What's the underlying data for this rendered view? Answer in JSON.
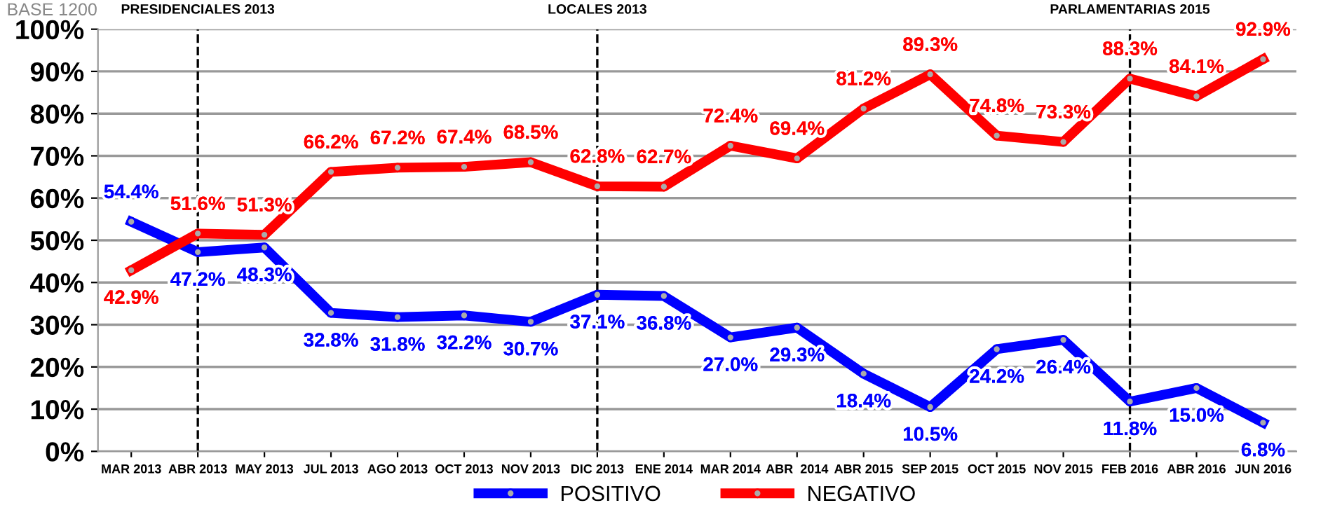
{
  "chart_data": {
    "type": "line",
    "categories": [
      "MAR 2013",
      "ABR 2013",
      "MAY 2013",
      "JUL 2013",
      "AGO 2013",
      "OCT 2013",
      "NOV 2013",
      "DIC 2013",
      "ENE 2014",
      "MAR 2014",
      "ABR  2014",
      "ABR 2015",
      "SEP 2015",
      "OCT 2015",
      "NOV 2015",
      "FEB 2016",
      "ABR 2016",
      "JUN 2016"
    ],
    "series": [
      {
        "name": "POSITIVO",
        "color": "#0000ff",
        "values": [
          54.4,
          47.2,
          48.3,
          32.8,
          31.8,
          32.2,
          30.7,
          37.1,
          36.8,
          27.0,
          29.3,
          18.4,
          10.5,
          24.2,
          26.4,
          11.8,
          15.0,
          6.8
        ],
        "value_labels": [
          "54.4%",
          "47.2%",
          "48.3%",
          "32.8%",
          "31.8%",
          "32.2%",
          "30.7%",
          "37.1%",
          "36.8%",
          "27.0%",
          "29.3%",
          "18.4%",
          "10.5%",
          "24.2%",
          "26.4%",
          "11.8%",
          "15.0%",
          "6.8%"
        ]
      },
      {
        "name": "NEGATIVO",
        "color": "#ff0000",
        "values": [
          42.9,
          51.6,
          51.3,
          66.2,
          67.2,
          67.4,
          68.5,
          62.8,
          62.7,
          72.4,
          69.4,
          81.2,
          89.3,
          74.8,
          73.3,
          88.3,
          84.1,
          92.9
        ],
        "value_labels": [
          "42.9%",
          "51.6%",
          "51.3%",
          "66.2%",
          "67.2%",
          "67.4%",
          "68.5%",
          "62.8%",
          "62.7%",
          "72.4%",
          "69.4%",
          "81.2%",
          "89.3%",
          "74.8%",
          "73.3%",
          "88.3%",
          "84.1%",
          "92.9%"
        ]
      }
    ],
    "ylim": [
      0,
      100
    ],
    "yticks": [
      {
        "value": 0,
        "label": "0%"
      },
      {
        "value": 10,
        "label": "10%"
      },
      {
        "value": 20,
        "label": "20%"
      },
      {
        "value": 30,
        "label": "30%"
      },
      {
        "value": 40,
        "label": "40%"
      },
      {
        "value": 50,
        "label": "50%"
      },
      {
        "value": 60,
        "label": "60%"
      },
      {
        "value": 70,
        "label": "70%"
      },
      {
        "value": 80,
        "label": "80%"
      },
      {
        "value": 90,
        "label": "90%"
      },
      {
        "value": 100,
        "label": "100%"
      }
    ],
    "grid": "y",
    "legend": "bottom",
    "marker": "circle",
    "line_style": "solid",
    "ref_lines": [
      {
        "axis": "x",
        "value": "ABR 2013",
        "label": "PRESIDENCIALES 2013",
        "color": "#000000",
        "line_style": "dashed"
      },
      {
        "axis": "x",
        "value": "DIC 2013",
        "label": "LOCALES 2013",
        "color": "#000000",
        "line_style": "dashed"
      },
      {
        "axis": "x",
        "value": "FEB 2016",
        "label": "PARLAMENTARIAS 2015",
        "color": "#000000",
        "line_style": "dashed"
      }
    ],
    "annotations": [
      "BASE 1200"
    ]
  }
}
